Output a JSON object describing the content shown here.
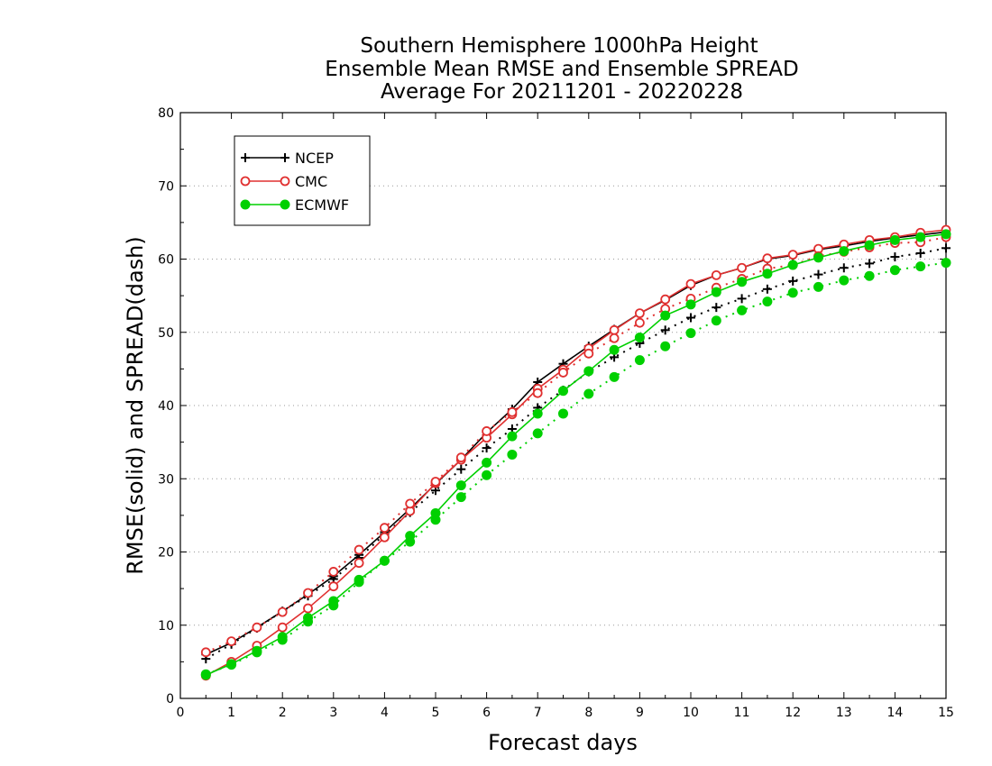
{
  "chart_data": {
    "type": "line",
    "title": [
      "Southern Hemisphere 1000hPa Height",
      "Ensemble Mean RMSE and Ensemble SPREAD",
      "Average For 20211201 - 20220228"
    ],
    "xlabel": "Forecast days",
    "ylabel": "RMSE(solid) and SPREAD(dash)",
    "xlim": [
      0,
      15
    ],
    "ylim": [
      0,
      80
    ],
    "x_ticks": [
      "0",
      "1",
      "2",
      "3",
      "4",
      "5",
      "6",
      "7",
      "8",
      "9",
      "10",
      "11",
      "12",
      "13",
      "14",
      "15"
    ],
    "y_ticks": [
      "0",
      "10",
      "20",
      "30",
      "40",
      "50",
      "60",
      "70",
      "80"
    ],
    "grid": "horizontal dotted",
    "legend_position": "top-left",
    "legend": [
      "NCEP",
      "CMC",
      "ECMWF"
    ],
    "x": [
      0.5,
      1,
      1.5,
      2,
      2.5,
      3,
      3.5,
      4,
      4.5,
      5,
      5.5,
      6,
      6.5,
      7,
      7.5,
      8,
      8.5,
      9,
      9.5,
      10,
      10.5,
      11,
      11.5,
      12,
      12.5,
      13,
      13.5,
      14,
      14.5,
      15
    ],
    "series": [
      {
        "name": "NCEP",
        "kind": "rmse",
        "style": "solid",
        "color": "#000000",
        "marker": "plus",
        "values": [
          6.0,
          7.6,
          9.7,
          11.9,
          14.2,
          16.7,
          19.6,
          22.7,
          25.9,
          29.3,
          32.6,
          36.3,
          39.5,
          43.2,
          45.7,
          48.1,
          50.4,
          52.6,
          54.4,
          56.4,
          57.8,
          58.8,
          60.0,
          60.5,
          61.3,
          61.8,
          62.4,
          62.9,
          63.3,
          63.7
        ]
      },
      {
        "name": "NCEP",
        "kind": "spread",
        "style": "dash",
        "color": "#000000",
        "marker": "plus",
        "values": [
          5.4,
          7.4,
          9.6,
          11.9,
          14.0,
          16.3,
          19.2,
          22.4,
          25.4,
          28.4,
          31.3,
          34.2,
          36.8,
          39.7,
          42.1,
          44.6,
          46.6,
          48.5,
          50.3,
          52.0,
          53.4,
          54.6,
          55.9,
          57.0,
          57.9,
          58.8,
          59.4,
          60.3,
          60.8,
          61.5
        ]
      },
      {
        "name": "CMC",
        "kind": "rmse",
        "style": "solid",
        "color": "#e03030",
        "marker": "open-circle",
        "values": [
          3.1,
          5.0,
          7.2,
          9.7,
          12.3,
          15.3,
          18.5,
          22.0,
          25.6,
          29.4,
          32.6,
          35.6,
          38.8,
          42.3,
          44.9,
          47.8,
          50.3,
          52.6,
          54.5,
          56.6,
          57.8,
          58.8,
          60.1,
          60.6,
          61.4,
          62.0,
          62.6,
          63.0,
          63.6,
          64.0
        ]
      },
      {
        "name": "CMC",
        "kind": "spread",
        "style": "dash",
        "color": "#e03030",
        "marker": "open-circle",
        "values": [
          6.3,
          7.8,
          9.7,
          11.8,
          14.4,
          17.3,
          20.3,
          23.3,
          26.6,
          29.6,
          32.9,
          36.5,
          39.1,
          41.7,
          44.5,
          47.1,
          49.2,
          51.3,
          53.2,
          54.6,
          56.1,
          57.3,
          58.7,
          59.2,
          60.4,
          61.0,
          61.6,
          62.2,
          62.3,
          63.0
        ]
      },
      {
        "name": "ECMWF",
        "kind": "rmse",
        "style": "solid",
        "color": "#00d000",
        "marker": "filled-circle",
        "values": [
          3.2,
          4.7,
          6.5,
          8.4,
          11.0,
          13.3,
          16.2,
          18.8,
          22.2,
          25.3,
          29.1,
          32.2,
          35.8,
          38.9,
          42.0,
          44.7,
          47.6,
          49.3,
          52.3,
          53.8,
          55.5,
          56.9,
          58.0,
          59.2,
          60.2,
          61.1,
          61.9,
          62.6,
          63.0,
          63.4
        ]
      },
      {
        "name": "ECMWF",
        "kind": "spread",
        "style": "dash",
        "color": "#00d000",
        "marker": "filled-circle",
        "values": [
          3.3,
          4.6,
          6.3,
          8.0,
          10.5,
          12.7,
          15.9,
          18.8,
          21.4,
          24.4,
          27.5,
          30.5,
          33.3,
          36.2,
          38.9,
          41.6,
          43.9,
          46.2,
          48.1,
          49.9,
          51.6,
          53.0,
          54.2,
          55.4,
          56.2,
          57.1,
          57.7,
          58.5,
          59.0,
          59.5
        ]
      }
    ]
  }
}
